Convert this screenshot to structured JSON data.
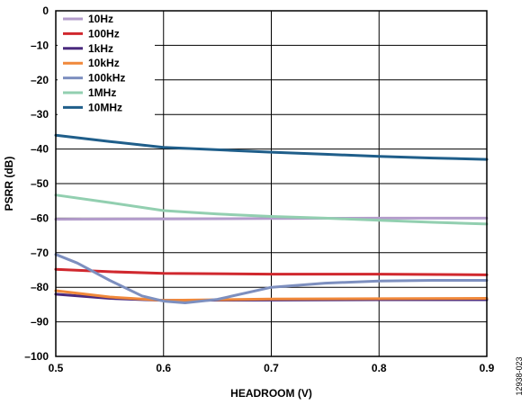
{
  "chart_data": {
    "type": "line",
    "xlabel": "HEADROOM (V)",
    "ylabel": "PSRR (dB)",
    "xlim": [
      0.5,
      0.9
    ],
    "ylim": [
      -100,
      0
    ],
    "x_ticks": [
      0.5,
      0.6,
      0.7,
      0.8,
      0.9
    ],
    "x_tick_labels": [
      "0.5",
      "0.6",
      "0.7",
      "0.8",
      "0.9"
    ],
    "y_ticks": [
      0,
      -10,
      -20,
      -30,
      -40,
      -50,
      -60,
      -70,
      -80,
      -90,
      -100
    ],
    "y_tick_labels": [
      "0",
      "–10",
      "–20",
      "–30",
      "–40",
      "–50",
      "–60",
      "–70",
      "–80",
      "–90",
      "–100"
    ],
    "grid": true,
    "legend_position": "top-left",
    "figure_id": "12938-023",
    "series": [
      {
        "name": "10Hz",
        "color": "#b39ccb",
        "x": [
          0.5,
          0.6,
          0.7,
          0.8,
          0.9
        ],
        "y": [
          -60.3,
          -60.2,
          -60.1,
          -60.0,
          -60.0
        ]
      },
      {
        "name": "100Hz",
        "color": "#d0282e",
        "x": [
          0.5,
          0.55,
          0.6,
          0.7,
          0.8,
          0.9
        ],
        "y": [
          -74.8,
          -75.5,
          -76.0,
          -76.2,
          -76.2,
          -76.4
        ]
      },
      {
        "name": "1kHz",
        "color": "#4a2a7e",
        "x": [
          0.5,
          0.55,
          0.6,
          0.7,
          0.8,
          0.9
        ],
        "y": [
          -82.0,
          -83.2,
          -83.8,
          -83.7,
          -83.6,
          -83.6
        ]
      },
      {
        "name": "10kHz",
        "color": "#f0883a",
        "x": [
          0.5,
          0.55,
          0.6,
          0.7,
          0.8,
          0.9
        ],
        "y": [
          -81.0,
          -82.8,
          -83.8,
          -83.4,
          -83.3,
          -83.2
        ]
      },
      {
        "name": "100kHz",
        "color": "#7d8fbf",
        "x": [
          0.5,
          0.52,
          0.55,
          0.58,
          0.6,
          0.62,
          0.65,
          0.7,
          0.75,
          0.8,
          0.85,
          0.9
        ],
        "y": [
          -70.5,
          -73.0,
          -78.0,
          -82.5,
          -84.0,
          -84.5,
          -83.5,
          -80.0,
          -78.8,
          -78.2,
          -78.0,
          -78.0
        ]
      },
      {
        "name": "1MHz",
        "color": "#92cfb0",
        "x": [
          0.5,
          0.55,
          0.6,
          0.65,
          0.7,
          0.75,
          0.8,
          0.85,
          0.9
        ],
        "y": [
          -53.3,
          -55.5,
          -57.8,
          -58.8,
          -59.5,
          -60.0,
          -60.6,
          -61.2,
          -61.7
        ]
      },
      {
        "name": "10MHz",
        "color": "#1f5e8a",
        "x": [
          0.5,
          0.55,
          0.6,
          0.65,
          0.7,
          0.75,
          0.8,
          0.85,
          0.9
        ],
        "y": [
          -36.0,
          -37.8,
          -39.5,
          -40.2,
          -40.9,
          -41.5,
          -42.1,
          -42.6,
          -43.0
        ]
      }
    ]
  }
}
